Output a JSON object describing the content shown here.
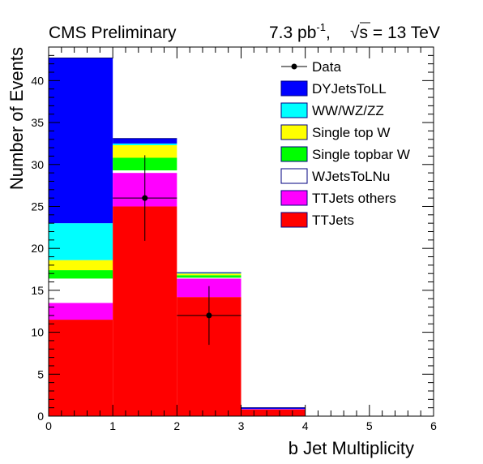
{
  "header": {
    "left": "CMS Preliminary",
    "lumi_value": "7.3 pb",
    "lumi_exp": "-1",
    "lumi_sep": ",",
    "energy_sqrt": "√",
    "energy_s": "s",
    "energy_rest": " = 13 TeV"
  },
  "chart_data": {
    "type": "bar",
    "stacked": true,
    "xlabel": "b Jet Multiplicity",
    "ylabel": "Number of Events",
    "xlim": [
      0,
      6
    ],
    "ylim": [
      0,
      44
    ],
    "grid": false,
    "legend_position": "top-right",
    "bins": [
      [
        0,
        1
      ],
      [
        1,
        2
      ],
      [
        2,
        3
      ],
      [
        3,
        4
      ],
      [
        4,
        5
      ],
      [
        5,
        6
      ]
    ],
    "x_ticks": [
      "0",
      "1",
      "2",
      "3",
      "4",
      "5",
      "6"
    ],
    "y_ticks": [
      "0",
      "5",
      "10",
      "15",
      "20",
      "25",
      "30",
      "35",
      "40"
    ],
    "y_tick_values": [
      0,
      5,
      10,
      15,
      20,
      25,
      30,
      35,
      40
    ],
    "series": [
      {
        "name": "TTJets",
        "color": "#ff0000",
        "values": [
          11.5,
          25.0,
          14.2,
          0.8,
          0,
          0
        ]
      },
      {
        "name": "TTJets others",
        "color": "#ff00ff",
        "values": [
          2.0,
          4.0,
          2.2,
          0.05,
          0,
          0
        ]
      },
      {
        "name": "WJetsToLNu",
        "color": "#ffffff",
        "values": [
          2.9,
          0.3,
          0.1,
          0,
          0,
          0
        ]
      },
      {
        "name": "Single topbar W",
        "color": "#00ff00",
        "values": [
          1.0,
          1.5,
          0.3,
          0,
          0,
          0
        ]
      },
      {
        "name": "Single top W",
        "color": "#ffff00",
        "values": [
          1.2,
          1.5,
          0.2,
          0,
          0,
          0
        ]
      },
      {
        "name": "WW/WZ/ZZ",
        "color": "#00ffff",
        "values": [
          4.4,
          0.2,
          0.1,
          0,
          0,
          0
        ]
      },
      {
        "name": "DYJetsToLL",
        "color": "#0000ff",
        "values": [
          19.7,
          0.6,
          0,
          0.15,
          0,
          0
        ]
      }
    ],
    "data": {
      "name": "Data",
      "points": [
        {
          "x": 1.5,
          "y": 26,
          "err": 5.1
        },
        {
          "x": 2.5,
          "y": 12,
          "err": 3.5
        }
      ]
    },
    "legend_order": [
      "Data",
      "DYJetsToLL",
      "WW/WZ/ZZ",
      "Single top W",
      "Single topbar W",
      "WJetsToLNu",
      "TTJets others",
      "TTJets"
    ]
  }
}
